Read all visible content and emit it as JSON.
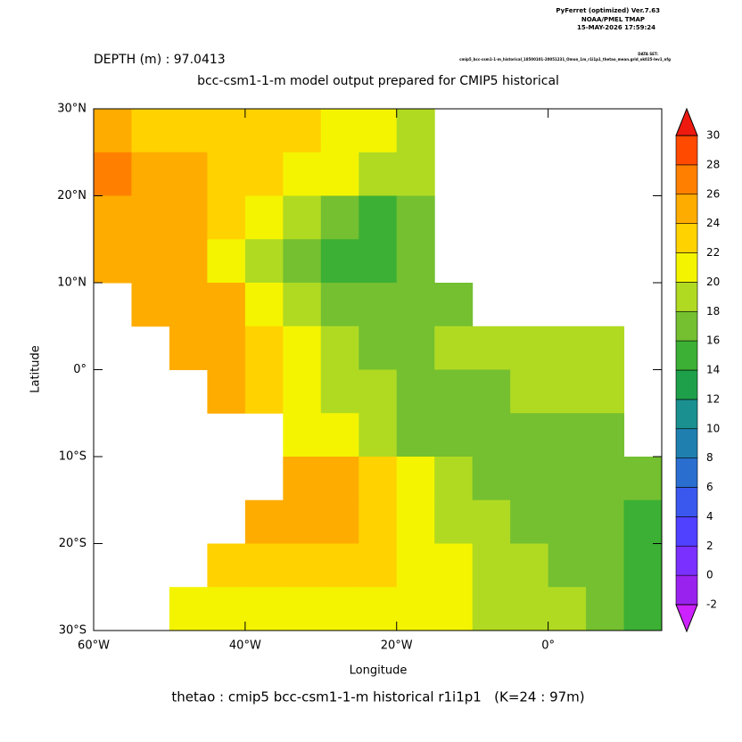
{
  "chart_data": {
    "type": "heatmap",
    "program": "PyFerret (optimized) Ver.7.63",
    "organization": "NOAA/PMEL TMAP",
    "date": "15-MAY-2026 17:59:24",
    "dataset_label": "DATA SET:",
    "dataset": "cmip5_bcc-csm1-1-m_historical_18500101-20051231_Omon_1m_r1i1p1_thetao_mean.grid_ok025-lev1_nfg",
    "subtitle": "DEPTH (m) : 97.0413",
    "title": "bcc-csm1-1-m model output prepared for CMIP5 historical",
    "x_label": "Longitude",
    "y_label": "Latitude",
    "caption": "thetao : cmip5 bcc-csm1-1-m historical r1i1p1   (K=24 : 97m)",
    "xlim": [
      -60,
      15
    ],
    "ylim": [
      -30,
      30
    ],
    "xticks": [
      {
        "value": -60,
        "label": "60°W"
      },
      {
        "value": -40,
        "label": "40°W"
      },
      {
        "value": -20,
        "label": "20°W"
      },
      {
        "value": 0,
        "label": "0°"
      }
    ],
    "yticks": [
      {
        "value": 30,
        "label": "30°N"
      },
      {
        "value": 20,
        "label": "20°N"
      },
      {
        "value": 10,
        "label": "10°N"
      },
      {
        "value": 0,
        "label": "0°"
      },
      {
        "value": -10,
        "label": "10°S"
      },
      {
        "value": -20,
        "label": "20°S"
      },
      {
        "value": -30,
        "label": "30°S"
      }
    ],
    "levels": [
      -2,
      0,
      2,
      4,
      6,
      8,
      10,
      12,
      14,
      16,
      18,
      20,
      22,
      24,
      26,
      28,
      30
    ],
    "colors": [
      "#cc22ff",
      "#9a22ee",
      "#7a30ff",
      "#5040ff",
      "#3a58ee",
      "#2a6ed0",
      "#1f80b0",
      "#1a9090",
      "#1ea04a",
      "#3cb034",
      "#74c030",
      "#b0da22",
      "#f4f400",
      "#ffd200",
      "#ffac00",
      "#ff8000",
      "#ff4a00",
      "#ee1a10"
    ],
    "x": [
      -57.5,
      -52.5,
      -47.5,
      -42.5,
      -37.5,
      -32.5,
      -27.5,
      -22.5,
      -17.5,
      -12.5,
      -7.5,
      -2.5,
      2.5,
      7.5,
      12.5
    ],
    "y": [
      27.5,
      22.5,
      17.5,
      12.5,
      7.5,
      2.5,
      -2.5,
      -7.5,
      -12.5,
      -17.5,
      -22.5,
      -27.5
    ],
    "z": [
      [
        24,
        23,
        23,
        23,
        22,
        22,
        21,
        20,
        19,
        null,
        null,
        null,
        null,
        null,
        null
      ],
      [
        26,
        25,
        24,
        23,
        22,
        21,
        20,
        19,
        18,
        null,
        null,
        null,
        null,
        null,
        null
      ],
      [
        25,
        25,
        24,
        22,
        20,
        18,
        16,
        15,
        16,
        null,
        null,
        null,
        null,
        null,
        null
      ],
      [
        25,
        25,
        24,
        21,
        19,
        17,
        15,
        15,
        16,
        null,
        null,
        null,
        null,
        null,
        null
      ],
      [
        null,
        25,
        25,
        24,
        21,
        18,
        17,
        16,
        17,
        17,
        null,
        null,
        null,
        null,
        null
      ],
      [
        null,
        null,
        25,
        24,
        23,
        20,
        18,
        17,
        17,
        18,
        18,
        18,
        18,
        18,
        null
      ],
      [
        null,
        null,
        null,
        24,
        23,
        21,
        19,
        18,
        17,
        17,
        17,
        18,
        18,
        18,
        null
      ],
      [
        null,
        null,
        null,
        null,
        null,
        21,
        20,
        18,
        17,
        16,
        16,
        16,
        17,
        17,
        null
      ],
      [
        null,
        null,
        null,
        null,
        null,
        25,
        24,
        22,
        20,
        18,
        17,
        16,
        16,
        16,
        17
      ],
      [
        null,
        null,
        null,
        null,
        24,
        25,
        24,
        22,
        21,
        19,
        18,
        17,
        16,
        16,
        15
      ],
      [
        null,
        null,
        null,
        22,
        23,
        23,
        23,
        22,
        21,
        20,
        19,
        18,
        17,
        16,
        15
      ],
      [
        null,
        null,
        20,
        21,
        21,
        21,
        21,
        21,
        20,
        20,
        19,
        19,
        18,
        16,
        14
      ]
    ]
  }
}
